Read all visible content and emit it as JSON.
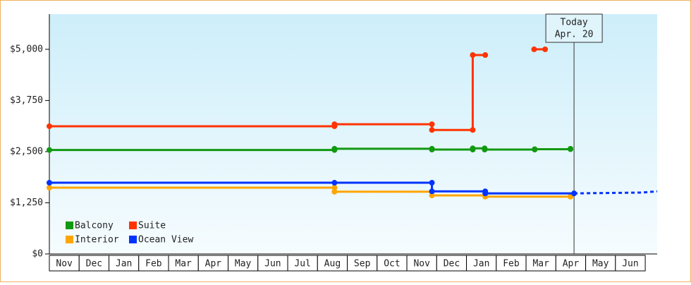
{
  "chart_data": {
    "type": "step-line",
    "xlim": [
      0,
      20.4
    ],
    "xticks": [
      {
        "value": 0.5,
        "label": "Nov"
      },
      {
        "value": 1.5,
        "label": "Dec"
      },
      {
        "value": 2.5,
        "label": "Jan"
      },
      {
        "value": 3.5,
        "label": "Feb"
      },
      {
        "value": 4.5,
        "label": "Mar"
      },
      {
        "value": 5.5,
        "label": "Apr"
      },
      {
        "value": 6.5,
        "label": "May"
      },
      {
        "value": 7.5,
        "label": "Jun"
      },
      {
        "value": 8.5,
        "label": "Jul"
      },
      {
        "value": 9.5,
        "label": "Aug"
      },
      {
        "value": 10.5,
        "label": "Sep"
      },
      {
        "value": 11.5,
        "label": "Oct"
      },
      {
        "value": 12.5,
        "label": "Nov"
      },
      {
        "value": 13.5,
        "label": "Dec"
      },
      {
        "value": 14.5,
        "label": "Jan"
      },
      {
        "value": 15.5,
        "label": "Feb"
      },
      {
        "value": 16.5,
        "label": "Mar"
      },
      {
        "value": 17.5,
        "label": "Apr"
      },
      {
        "value": 18.5,
        "label": "May"
      },
      {
        "value": 19.5,
        "label": "Jun"
      }
    ],
    "ylim": [
      0,
      5860
    ],
    "yticks": [
      {
        "value": 0,
        "label": "$0"
      },
      {
        "value": 1250,
        "label": "$1,250"
      },
      {
        "value": 2500,
        "label": "$2,500"
      },
      {
        "value": 3750,
        "label": "$3,750"
      },
      {
        "value": 5000,
        "label": "$5,000"
      }
    ],
    "series": [
      {
        "name": "Balcony",
        "color": "#119911",
        "x": [
          0,
          9.57,
          12.84,
          14.21,
          14.61,
          16.29,
          17.49
        ],
        "values": [
          2540,
          2570,
          2550,
          2580,
          2550,
          2560,
          2570
        ]
      },
      {
        "name": "Suite",
        "color": "#ff3300",
        "x": [
          0,
          9.57,
          12.84,
          14.21,
          14.63,
          15.5,
          16.27,
          16.64
        ],
        "values": [
          3120,
          3170,
          3030,
          4860,
          4860,
          null,
          5000,
          5000
        ]
      },
      {
        "name": "Interior",
        "color": "#ffa500",
        "x": [
          0,
          9.57,
          12.84,
          14.63,
          17.49
        ],
        "values": [
          1620,
          1520,
          1430,
          1400,
          1400
        ]
      },
      {
        "name": "Ocean View",
        "color": "#0033ff",
        "x": [
          0,
          9.57,
          12.84,
          14.63,
          17.61
        ],
        "values": [
          1740,
          1740,
          1530,
          1480,
          1480
        ],
        "forecast_x": [
          17.61,
          19.9,
          20.4
        ],
        "forecast_values": [
          1480,
          1500,
          1530
        ]
      }
    ],
    "annotation": {
      "x": 17.61,
      "lines": [
        "Today",
        "Apr. 20"
      ]
    }
  }
}
